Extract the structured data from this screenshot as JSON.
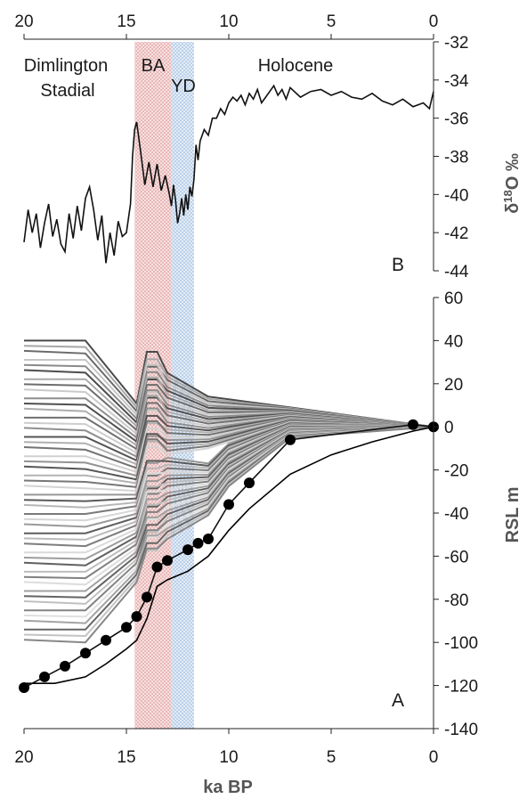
{
  "chart_data": [
    {
      "id": "B",
      "type": "line",
      "panel_label": "B",
      "xlabel": "ka BP",
      "ylabel_main": "δ",
      "ylabel_sup": "18",
      "ylabel_rest": "O ‰",
      "xlim": [
        20,
        0
      ],
      "ylim": [
        -44,
        -32
      ],
      "x_ticks": [
        "20",
        "15",
        "10",
        "5",
        "0"
      ],
      "y_ticks": [
        "-32",
        "-34",
        "-36",
        "-38",
        "-40",
        "-42",
        "-44"
      ],
      "series": [
        {
          "color": "#111111",
          "x": [
            20,
            19.8,
            19.6,
            19.4,
            19.2,
            19.0,
            18.8,
            18.6,
            18.4,
            18.2,
            18.0,
            17.8,
            17.6,
            17.4,
            17.2,
            17.0,
            16.8,
            16.6,
            16.4,
            16.2,
            16.0,
            15.8,
            15.6,
            15.4,
            15.2,
            15.0,
            14.8,
            14.7,
            14.6,
            14.5,
            14.3,
            14.1,
            13.9,
            13.7,
            13.5,
            13.3,
            13.1,
            12.9,
            12.8,
            12.7,
            12.6,
            12.5,
            12.4,
            12.3,
            12.2,
            12.1,
            12.0,
            11.9,
            11.8,
            11.7,
            11.6,
            11.5,
            11.4,
            11.2,
            11.0,
            10.8,
            10.6,
            10.4,
            10.2,
            10.0,
            9.8,
            9.6,
            9.4,
            9.2,
            9.0,
            8.8,
            8.6,
            8.4,
            8.2,
            8.0,
            7.8,
            7.6,
            7.4,
            7.2,
            7.0,
            6.5,
            6.0,
            5.5,
            5.0,
            4.5,
            4.0,
            3.5,
            3.0,
            2.5,
            2.0,
            1.5,
            1.0,
            0.5,
            0.2,
            0
          ],
          "y": [
            -42.5,
            -40.8,
            -42.0,
            -41.0,
            -42.8,
            -41.5,
            -40.5,
            -42.2,
            -41.3,
            -42.6,
            -43.0,
            -41.0,
            -42.3,
            -40.6,
            -41.9,
            -40.2,
            -39.6,
            -40.8,
            -42.4,
            -41.1,
            -43.6,
            -42.0,
            -43.2,
            -41.4,
            -42.2,
            -42.0,
            -40.5,
            -38.0,
            -36.6,
            -36.2,
            -37.8,
            -39.5,
            -38.3,
            -39.6,
            -38.4,
            -39.8,
            -39.0,
            -40.0,
            -40.6,
            -39.5,
            -40.3,
            -41.5,
            -41.0,
            -40.2,
            -41.1,
            -40.0,
            -40.8,
            -39.6,
            -40.1,
            -39.2,
            -37.4,
            -38.2,
            -37.2,
            -36.6,
            -36.9,
            -36.0,
            -36.0,
            -35.5,
            -35.8,
            -35.2,
            -34.9,
            -35.1,
            -34.8,
            -35.3,
            -34.7,
            -35.0,
            -34.5,
            -35.2,
            -34.9,
            -34.6,
            -34.3,
            -34.8,
            -34.5,
            -35.0,
            -34.4,
            -34.9,
            -34.6,
            -34.5,
            -34.8,
            -34.6,
            -34.9,
            -35.0,
            -34.7,
            -35.1,
            -35.3,
            -35.0,
            -35.4,
            -35.2,
            -35.5,
            -34.6
          ]
        }
      ]
    },
    {
      "id": "A",
      "type": "line",
      "panel_label": "A",
      "xlabel": "ka BP",
      "ylabel": "RSL m",
      "xlim": [
        20,
        0
      ],
      "ylim": [
        -140,
        60
      ],
      "x_ticks": [
        "20",
        "15",
        "10",
        "5",
        "0"
      ],
      "y_ticks": [
        "60",
        "40",
        "20",
        "0",
        "-20",
        "-40",
        "-60",
        "-80",
        "-100",
        "-120",
        "-140"
      ],
      "ensemble": {
        "count": 48,
        "color_range": [
          "#4a4a4a",
          "#e0e0e0"
        ],
        "x": [
          20,
          17,
          15,
          14.5,
          14,
          13.5,
          13,
          12,
          11,
          10,
          9,
          7,
          5,
          3,
          1,
          0
        ],
        "start_range": [
          40,
          -100
        ],
        "end": 0
      },
      "points": {
        "color": "#000000",
        "x": [
          20,
          19,
          18,
          17,
          16,
          15,
          14.5,
          14,
          13.5,
          13,
          12,
          11.5,
          11,
          10,
          9,
          7,
          1,
          0
        ],
        "y": [
          -121,
          -116,
          -111,
          -105,
          -99,
          -93,
          -88,
          -79,
          -65,
          -62,
          -57,
          -54,
          -52,
          -36,
          -26,
          -6,
          1,
          0
        ]
      },
      "lower_bound": {
        "color": "#000000",
        "x": [
          20,
          18.5,
          17,
          16,
          15,
          14.5,
          14,
          13.5,
          13,
          12,
          11,
          10,
          9,
          7,
          5,
          3,
          1,
          0
        ],
        "y": [
          -119,
          -119,
          -116,
          -110,
          -103,
          -99,
          -89,
          -74,
          -71,
          -67,
          -60,
          -48,
          -38,
          -22,
          -13,
          -7,
          -2,
          0
        ]
      }
    }
  ],
  "shading": [
    {
      "label": "BA",
      "from": 14.6,
      "to": 12.8,
      "color": "#e8a0a0"
    },
    {
      "label": "YD",
      "from": 12.8,
      "to": 11.7,
      "color": "#a9c6e8"
    }
  ],
  "period_labels": {
    "dimlington_1": "Dimlington",
    "dimlington_2": "Stadial",
    "ba": "BA",
    "yd": "YD",
    "holocene": "Holocene"
  }
}
